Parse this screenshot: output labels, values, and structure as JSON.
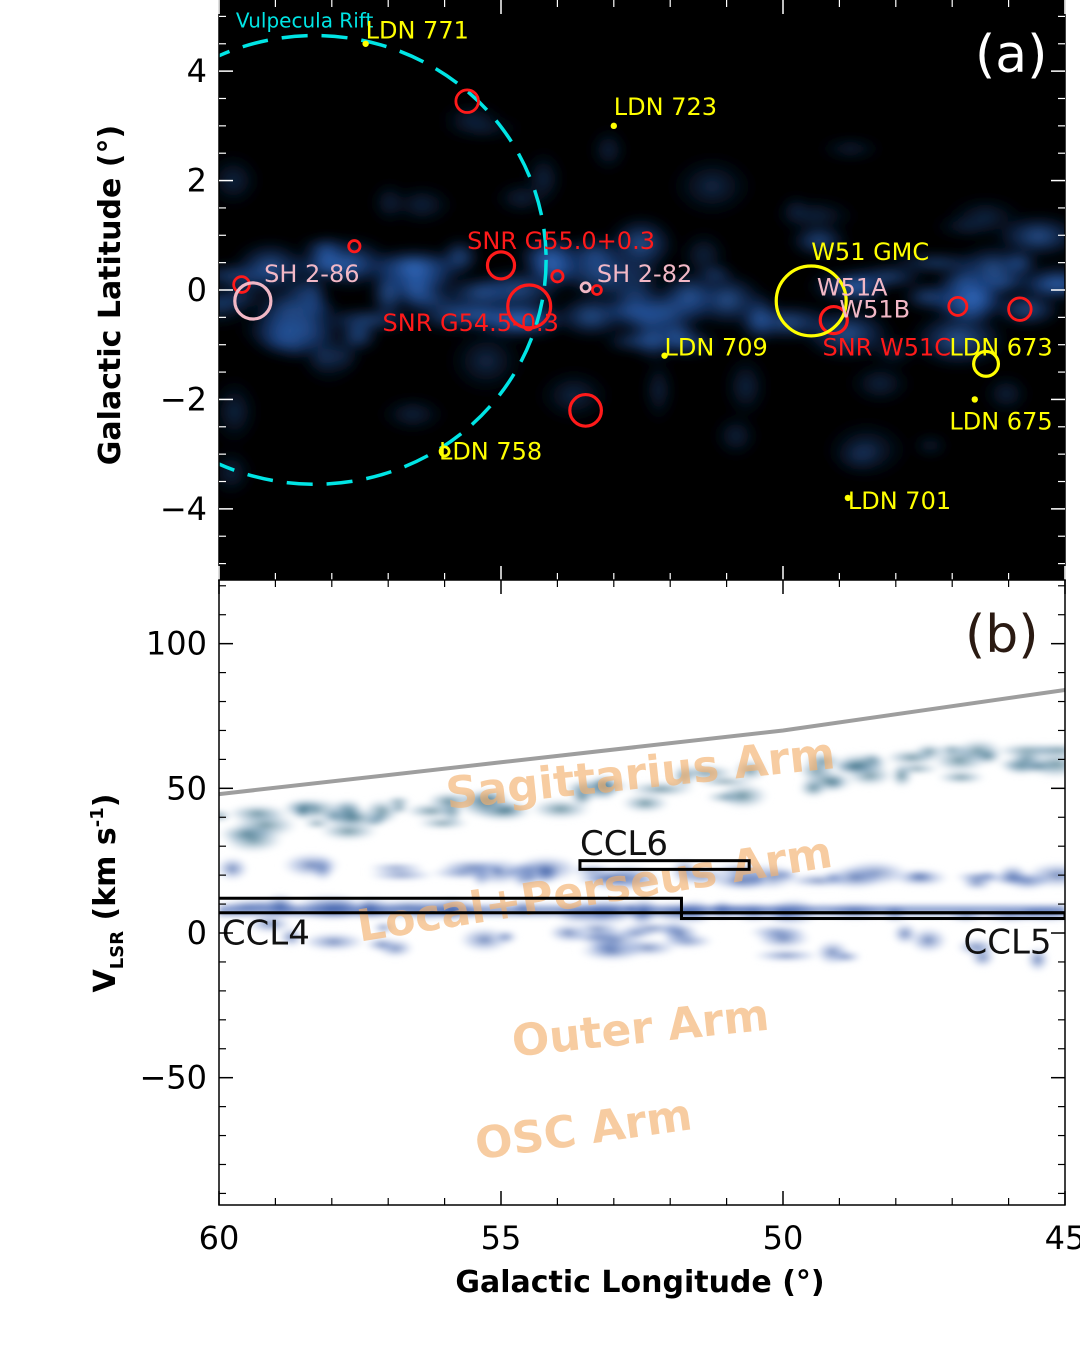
{
  "figure": {
    "panel_a_tag": "(a)",
    "panel_b_tag": "(b)",
    "xlabel": "Galactic Longitude (°)"
  },
  "chart_data": [
    {
      "type": "scatter",
      "panel": "(a)",
      "ylabel": "Galactic Latitude (°)",
      "xlim": [
        60,
        45
      ],
      "ylim": [
        -5.3,
        5.3
      ],
      "xticks": [
        60,
        55,
        50,
        45
      ],
      "yticks": [
        -4,
        -2,
        0,
        2,
        4
      ],
      "background": "black image with blue Galactic plane emission",
      "circle_markers": [
        {
          "l": 59.6,
          "b": 0.1,
          "r_deg": 0.14,
          "color": "#ff1a1a"
        },
        {
          "l": 57.6,
          "b": 0.8,
          "r_deg": 0.1,
          "color": "#ff1a1a"
        },
        {
          "l": 55.6,
          "b": 3.45,
          "r_deg": 0.2,
          "color": "#ff1a1a"
        },
        {
          "l": 55.0,
          "b": 0.45,
          "r_deg": 0.24,
          "color": "#ff1a1a"
        },
        {
          "l": 54.5,
          "b": -0.3,
          "r_deg": 0.38,
          "color": "#ff1a1a"
        },
        {
          "l": 54.0,
          "b": 0.25,
          "r_deg": 0.1,
          "color": "#ff1a1a"
        },
        {
          "l": 53.3,
          "b": 0.0,
          "r_deg": 0.08,
          "color": "#ff1a1a"
        },
        {
          "l": 53.5,
          "b": -2.2,
          "r_deg": 0.28,
          "color": "#ff1a1a"
        },
        {
          "l": 49.1,
          "b": -0.55,
          "r_deg": 0.24,
          "color": "#ff1a1a"
        },
        {
          "l": 46.9,
          "b": -0.3,
          "r_deg": 0.16,
          "color": "#ff1a1a"
        },
        {
          "l": 45.8,
          "b": -0.35,
          "r_deg": 0.2,
          "color": "#ff1a1a"
        },
        {
          "l": 59.4,
          "b": -0.2,
          "r_deg": 0.32,
          "color": "#f2b8c6"
        },
        {
          "l": 53.5,
          "b": 0.05,
          "r_deg": 0.08,
          "color": "#f2b8c6"
        },
        {
          "l": 49.5,
          "b": -0.2,
          "r_deg": 0.62,
          "color": "#ffff00"
        },
        {
          "l": 46.4,
          "b": -1.35,
          "r_deg": 0.22,
          "color": "#ffff00"
        },
        {
          "l": 56.0,
          "b": -2.95,
          "r_deg": 0.08,
          "color": "#ffff00"
        }
      ],
      "dot_markers": [
        {
          "l": 57.4,
          "b": 4.5
        },
        {
          "l": 53.0,
          "b": 3.0
        },
        {
          "l": 52.1,
          "b": -1.2
        },
        {
          "l": 48.85,
          "b": -3.8
        },
        {
          "l": 46.6,
          "b": -2.0
        }
      ],
      "labels": [
        {
          "text": "Vulpecula Rift",
          "l": 59.7,
          "b": 4.8,
          "color": "#00e5e5"
        },
        {
          "text": "LDN 771",
          "l": 57.4,
          "b": 4.6,
          "color": "#ffff00"
        },
        {
          "text": "LDN 723",
          "l": 53.0,
          "b": 3.2,
          "color": "#ffff00"
        },
        {
          "text": "SNR G55.0+0.3",
          "l": 55.6,
          "b": 0.75,
          "color": "#ff1a1a"
        },
        {
          "text": "SH 2-86",
          "l": 59.2,
          "b": 0.15,
          "color": "#f2b8c6"
        },
        {
          "text": "SH 2-82",
          "l": 53.3,
          "b": 0.15,
          "color": "#f2b8c6"
        },
        {
          "text": "SNR G54.5-0.3",
          "l": 57.1,
          "b": -0.75,
          "color": "#ff1a1a"
        },
        {
          "text": "W51 GMC",
          "l": 49.5,
          "b": 0.55,
          "color": "#ffff00"
        },
        {
          "text": "W51A",
          "l": 49.4,
          "b": -0.1,
          "color": "#f2b8c6"
        },
        {
          "text": "W51B",
          "l": 49.0,
          "b": -0.5,
          "color": "#f2b8c6"
        },
        {
          "text": "SNR W51C",
          "l": 49.3,
          "b": -1.2,
          "color": "#ff1a1a"
        },
        {
          "text": "LDN 673",
          "l": 47.05,
          "b": -1.2,
          "color": "#ffff00"
        },
        {
          "text": "LDN 709",
          "l": 52.1,
          "b": -1.2,
          "color": "#ffff00"
        },
        {
          "text": "LDN 675",
          "l": 47.05,
          "b": -2.55,
          "color": "#ffff00"
        },
        {
          "text": "LDN 758",
          "l": 56.1,
          "b": -3.1,
          "color": "#ffff00"
        },
        {
          "text": "LDN 701",
          "l": 48.85,
          "b": -4.0,
          "color": "#ffff00"
        }
      ],
      "rift_ring": {
        "center_l": 58.3,
        "center_b": 0.55,
        "radius_deg": 4.1,
        "color": "#00e5e5",
        "style": "dashed"
      }
    },
    {
      "type": "heatmap",
      "panel": "(b)",
      "ylabel": "VLSR (km s-1)",
      "xlim": [
        60,
        45
      ],
      "ylim": [
        -94,
        122
      ],
      "xticks": [
        60,
        55,
        50,
        45
      ],
      "yticks": [
        -50,
        0,
        50,
        100
      ],
      "tangent_curve": {
        "x": [
          60,
          55,
          50,
          45
        ],
        "y": [
          48,
          59,
          70,
          84
        ],
        "color": "#9e9e9e"
      },
      "arm_labels": [
        {
          "text": "Sagittarius Arm",
          "l": 52.5,
          "vlsr": 50
        },
        {
          "text": "Local+Perseus Arm",
          "l": 53.3,
          "vlsr": 10
        },
        {
          "text": "Outer Arm",
          "l": 52.5,
          "vlsr": -38
        },
        {
          "text": "OSC Arm",
          "l": 53.5,
          "vlsr": -73
        }
      ],
      "boxes": [
        {
          "name": "CCL6",
          "l_range": [
            53.6,
            50.6
          ],
          "v_range": [
            22,
            25
          ]
        },
        {
          "name": "CCL4",
          "outline": [
            [
              60,
              12
            ],
            [
              51.8,
              12
            ],
            [
              51.8,
              5
            ],
            [
              45,
              5
            ],
            [
              45,
              7
            ],
            [
              51.8,
              7
            ],
            [
              51.8,
              7
            ],
            [
              60,
              7
            ]
          ]
        },
        {
          "name": "CCL5",
          "l_range": [
            51.8,
            45
          ],
          "v_range": [
            5,
            7
          ]
        }
      ],
      "box_labels": [
        {
          "text": "CCL6",
          "l": 53.6,
          "vlsr": 27
        },
        {
          "text": "CCL4",
          "l": 59.95,
          "vlsr": -4
        },
        {
          "text": "CCL5",
          "l": 46.8,
          "vlsr": -7
        }
      ]
    }
  ]
}
